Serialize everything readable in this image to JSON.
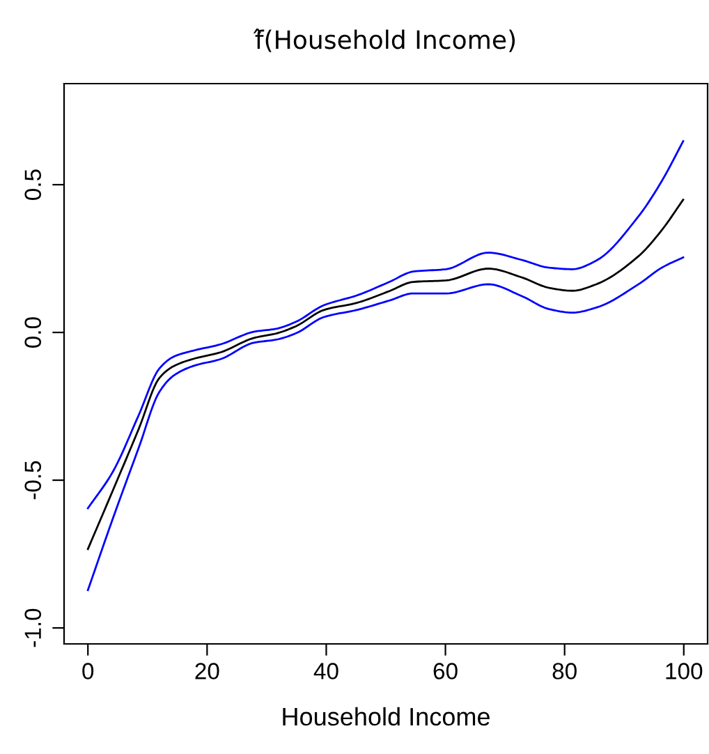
{
  "chart_data": {
    "type": "line",
    "title": "f̂(Household Income)",
    "xlabel": "Household Income",
    "x": [
      0,
      4.2,
      8.5,
      12,
      14.4,
      17.6,
      22.3,
      27.8,
      31.7,
      34.9,
      39.6,
      45.1,
      50.6,
      54.6,
      60.1,
      67.2,
      72.7,
      77.4,
      81.3,
      85.3,
      92.4,
      96.3,
      99.9
    ],
    "series": [
      {
        "color": "#000000",
        "values": [
          -0.733,
          -0.534,
          -0.328,
          -0.154,
          -0.114,
          -0.09,
          -0.067,
          -0.019,
          -0.003,
          0.021,
          0.076,
          0.1,
          0.14,
          0.171,
          0.176,
          0.216,
          0.187,
          0.151,
          0.141,
          0.163,
          0.258,
          0.346,
          0.449
        ]
      },
      {
        "color": "#0000ff",
        "values": [
          -0.595,
          -0.471,
          -0.281,
          -0.122,
          -0.082,
          -0.062,
          -0.04,
          0.002,
          0.013,
          0.036,
          0.092,
          0.125,
          0.171,
          0.206,
          0.214,
          0.27,
          0.246,
          0.219,
          0.214,
          0.243,
          0.393,
          0.512,
          0.647
        ]
      },
      {
        "color": "#0000ff",
        "values": [
          -0.872,
          -0.629,
          -0.392,
          -0.201,
          -0.146,
          -0.114,
          -0.09,
          -0.035,
          -0.024,
          -0.003,
          0.052,
          0.076,
          0.108,
          0.132,
          0.132,
          0.163,
          0.124,
          0.079,
          0.067,
          0.084,
          0.163,
          0.219,
          0.254
        ]
      }
    ],
    "xlim": [
      -4,
      104
    ],
    "ylim": [
      -1.054,
      0.842
    ],
    "xticks": [
      0,
      20,
      40,
      60,
      80,
      100
    ],
    "yticks": [
      {
        "value": -1,
        "label": "-1.0"
      },
      {
        "value": -0.5,
        "label": "-0.5"
      },
      {
        "value": 0,
        "label": "0.0"
      },
      {
        "value": 0.5,
        "label": "0.5"
      }
    ],
    "grid": false,
    "marker": "none",
    "line_style": "solid"
  }
}
